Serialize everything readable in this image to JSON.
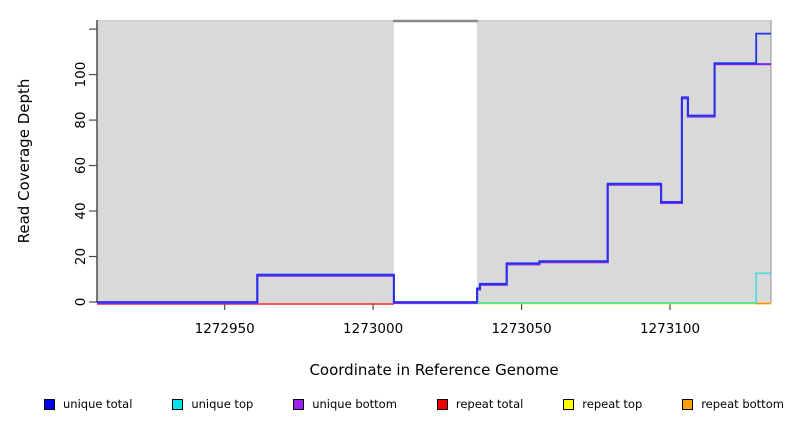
{
  "chart_data": {
    "type": "line",
    "step": true,
    "title": "",
    "xlabel": "Coordinate in Reference Genome",
    "ylabel": "Read Coverage Depth",
    "xlim": [
      1272907,
      1273134
    ],
    "ylim": [
      0,
      124
    ],
    "x_ticks": [
      1272950,
      1273000,
      1273050,
      1273100
    ],
    "x_tick_labels": [
      "1272950",
      "1273000",
      "1273050",
      "1273100"
    ],
    "y_ticks": [
      0,
      20,
      40,
      60,
      80,
      100,
      120
    ],
    "y_tick_labels": [
      "0",
      "20",
      "40",
      "60",
      "80",
      "100",
      ""
    ],
    "plot_bg_color": "#d9d9d9",
    "grid": false,
    "legend_position": "bottom",
    "gap_region": {
      "x0": 1273007,
      "x1": 1273035
    },
    "series": [
      {
        "name": "repeat top",
        "color": "#eded00",
        "steps": [
          [
            1273035,
            0
          ],
          [
            1273134,
            0
          ]
        ]
      },
      {
        "name": "repeat total",
        "color": "#ee2222",
        "steps": [
          [
            1272907,
            0
          ],
          [
            1273007,
            0
          ]
        ]
      },
      {
        "name": "repeat bottom",
        "color": "#ff9100",
        "steps": [
          [
            1273129,
            0
          ],
          [
            1273134,
            0
          ]
        ]
      },
      {
        "name": "unique bottom",
        "color": "#7d2ae8",
        "steps": [
          [
            1272907,
            0
          ],
          [
            1272961,
            12
          ],
          [
            1273007,
            0
          ],
          [
            1273035,
            6
          ],
          [
            1273036,
            8
          ],
          [
            1273045,
            17
          ],
          [
            1273056,
            18
          ],
          [
            1273079,
            52
          ],
          [
            1273097,
            44
          ],
          [
            1273104,
            90
          ],
          [
            1273106,
            82
          ],
          [
            1273115,
            105
          ],
          [
            1273134,
            105
          ]
        ]
      },
      {
        "name": "unique total",
        "color": "#2233ee",
        "steps": [
          [
            1272907,
            0
          ],
          [
            1272961,
            12
          ],
          [
            1273007,
            0
          ],
          [
            1273035,
            6
          ],
          [
            1273036,
            8
          ],
          [
            1273045,
            17
          ],
          [
            1273056,
            18
          ],
          [
            1273079,
            52
          ],
          [
            1273097,
            44
          ],
          [
            1273104,
            90
          ],
          [
            1273106,
            82
          ],
          [
            1273115,
            105
          ],
          [
            1273129,
            118
          ],
          [
            1273134,
            118
          ]
        ]
      },
      {
        "name": "unique top",
        "color": "#00dddd",
        "steps": [
          [
            1273035,
            0
          ],
          [
            1273129,
            13
          ],
          [
            1273134,
            13
          ]
        ]
      }
    ],
    "legend": [
      {
        "label": "unique total",
        "color": "#0000ee"
      },
      {
        "label": "unique top",
        "color": "#00e5e5"
      },
      {
        "label": "unique bottom",
        "color": "#a020f0"
      },
      {
        "label": "repeat total",
        "color": "#ee0000"
      },
      {
        "label": "repeat top",
        "color": "#ffff00"
      },
      {
        "label": "repeat bottom",
        "color": "#ffa000"
      }
    ]
  }
}
